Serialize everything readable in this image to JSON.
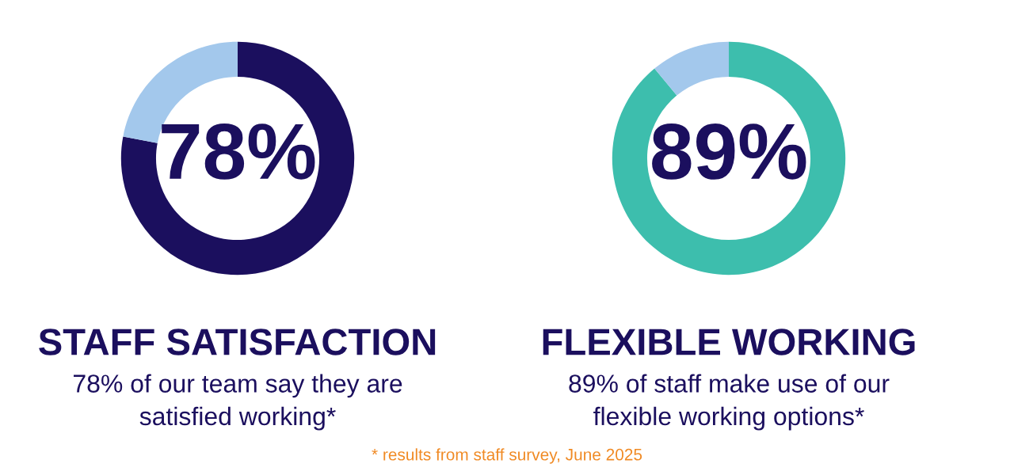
{
  "chart_data": [
    {
      "type": "donut",
      "title": "STAFF SATISFACTION",
      "subtitle": "78% of our team say they are\nsatisfied working*",
      "categories": [
        null,
        null
      ],
      "values": [
        78,
        22
      ],
      "colors": [
        "#1b0f5e",
        "#a3c8ec"
      ],
      "value_labels": [
        "78%",
        null
      ]
    },
    {
      "type": "donut",
      "title": "FLEXIBLE WORKING",
      "subtitle": "89% of staff make use of our\nflexible working options*",
      "categories": [
        null,
        null
      ],
      "values": [
        89,
        11
      ],
      "colors": [
        "#3dbead",
        "#a3c8ec"
      ],
      "value_labels": [
        "89%",
        null
      ],
      "annotations": [
        "* results from staff survey, June 2025"
      ]
    }
  ]
}
